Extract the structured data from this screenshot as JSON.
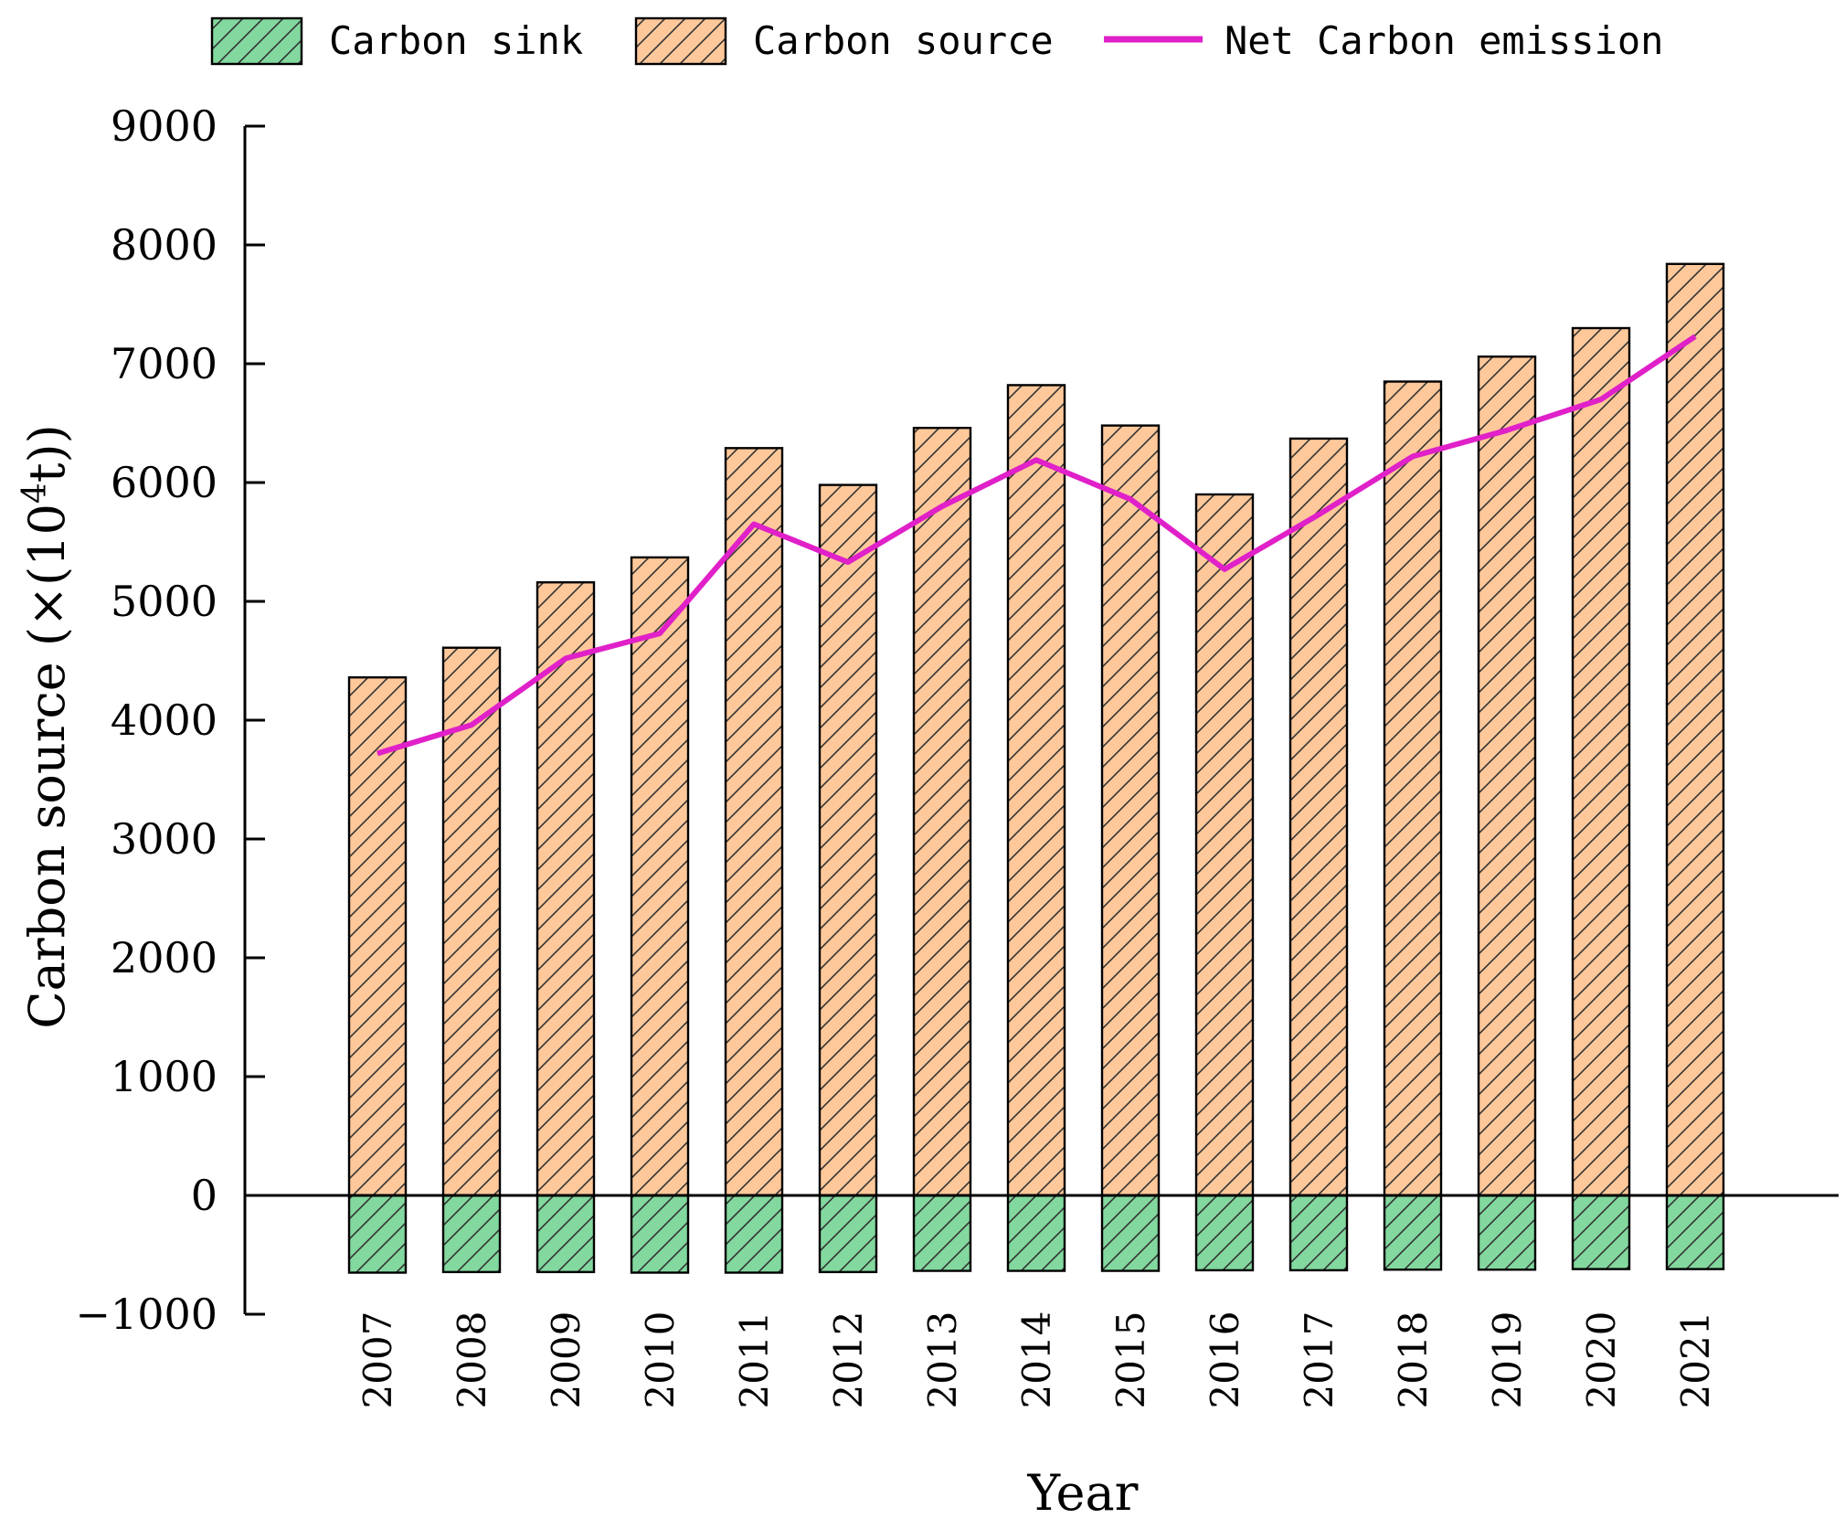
{
  "chart_data": {
    "type": "bar",
    "title": "",
    "xlabel": "Year",
    "ylabel": "Carbon source (×(10⁴t))",
    "ylabel_parts": {
      "prefix": "Carbon source (×(10",
      "sup": "4",
      "suffix": "t))"
    },
    "ylim": [
      -1000,
      9000
    ],
    "yticks": [
      9000,
      8000,
      7000,
      6000,
      5000,
      4000,
      3000,
      2000,
      1000,
      0,
      -1000
    ],
    "ytick_labels": [
      "9000",
      "8000",
      "7000",
      "6000",
      "5000",
      "4000",
      "3000",
      "2000",
      "1000",
      "0",
      "−1000"
    ],
    "grid": false,
    "legend_position": "top",
    "categories": [
      "2007",
      "2008",
      "2009",
      "2010",
      "2011",
      "2012",
      "2013",
      "2014",
      "2015",
      "2016",
      "2017",
      "2018",
      "2019",
      "2020",
      "2021"
    ],
    "series": [
      {
        "name": "Carbon sink",
        "kind": "bar",
        "color": "#82d89e",
        "hatch": true,
        "values": [
          -650,
          -645,
          -645,
          -650,
          -650,
          -645,
          -635,
          -635,
          -635,
          -630,
          -630,
          -625,
          -625,
          -620,
          -620
        ]
      },
      {
        "name": "Carbon source",
        "kind": "bar",
        "color": "#ffc89a",
        "hatch": true,
        "values": [
          4360,
          4610,
          5160,
          5370,
          6290,
          5980,
          6460,
          6820,
          6480,
          5900,
          6370,
          6850,
          7060,
          7300,
          7840
        ]
      },
      {
        "name": "Net Carbon emission",
        "kind": "line",
        "color": "#e020c8",
        "values": [
          3720,
          3960,
          4520,
          4730,
          5650,
          5330,
          5800,
          6190,
          5860,
          5270,
          5730,
          6220,
          6440,
          6700,
          7230
        ]
      }
    ]
  }
}
